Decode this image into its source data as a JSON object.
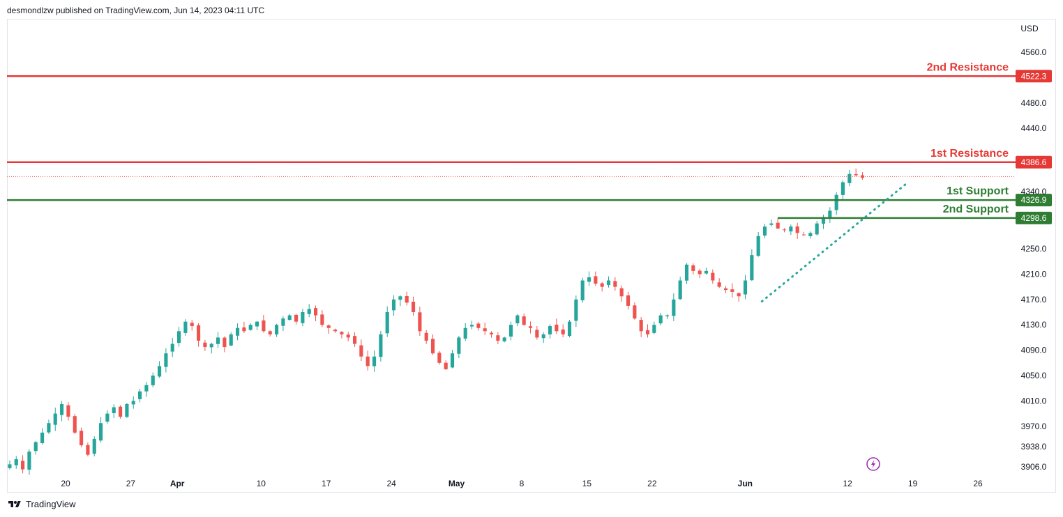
{
  "header": {
    "publisher_line": "desmondlzw published on TradingView.com, Jun 14, 2023 04:11 UTC"
  },
  "footer": {
    "brand": "TradingView"
  },
  "colors": {
    "up": "#26a69a",
    "down": "#ef5350",
    "resistance": "#e53935",
    "support": "#2e7d32",
    "trend": "#26a69a",
    "grid_border": "#e0e3eb"
  },
  "icons": {
    "flash": "lightning-icon",
    "logo": "tradingview-logo-icon"
  },
  "chart_data": {
    "type": "candlestick",
    "currency": "USD",
    "y_ticks": [
      "4560.0",
      "4480.0",
      "4440.0",
      "4340.0",
      "4250.0",
      "4210.0",
      "4170.0",
      "4130.0",
      "4090.0",
      "4050.0",
      "4010.0",
      "3970.0",
      "3938.0",
      "3906.0"
    ],
    "x_ticks": [
      {
        "label": "20",
        "day": 0
      },
      {
        "label": "27",
        "day": 7
      },
      {
        "label": "Apr",
        "day": 12,
        "bold": true
      },
      {
        "label": "10",
        "day": 21
      },
      {
        "label": "17",
        "day": 28
      },
      {
        "label": "24",
        "day": 35
      },
      {
        "label": "May",
        "day": 42,
        "bold": true
      },
      {
        "label": "8",
        "day": 49
      },
      {
        "label": "15",
        "day": 56
      },
      {
        "label": "22",
        "day": 63
      },
      {
        "label": "Jun",
        "day": 73,
        "bold": true
      },
      {
        "label": "12",
        "day": 84
      },
      {
        "label": "19",
        "day": 91
      },
      {
        "label": "26",
        "day": 98
      }
    ],
    "levels": [
      {
        "name": "2nd Resistance",
        "price": "4522.3",
        "kind": "resistance"
      },
      {
        "name": "1st Resistance",
        "price": "4386.6",
        "kind": "resistance"
      },
      {
        "name": "1st Support",
        "price": "4326.9",
        "kind": "support"
      },
      {
        "name": "2nd Support",
        "price": "4298.6",
        "kind": "support"
      }
    ],
    "last_price": 4364,
    "trendline": {
      "from": {
        "day": 74.8,
        "price": 4167
      },
      "to": {
        "day": 90.5,
        "price": 4355
      }
    },
    "closes": [
      3910,
      3918,
      3902,
      3930,
      3945,
      3960,
      3975,
      3990,
      4005,
      3985,
      3960,
      3940,
      3925,
      3950,
      3975,
      3990,
      4000,
      3985,
      4005,
      4010,
      4025,
      4035,
      4050,
      4065,
      4085,
      4100,
      4120,
      4135,
      4128,
      4105,
      4095,
      4100,
      4110,
      4095,
      4115,
      4125,
      4120,
      4130,
      4135,
      4120,
      4115,
      4130,
      4140,
      4145,
      4135,
      4150,
      4155,
      4145,
      4130,
      4125,
      4120,
      4115,
      4110,
      4100,
      4080,
      4065,
      4080,
      4115,
      4150,
      4170,
      4175,
      4165,
      4150,
      4120,
      4105,
      4085,
      4070,
      4060,
      4085,
      4110,
      4125,
      4130,
      4125,
      4120,
      4115,
      4105,
      4110,
      4130,
      4145,
      4130,
      4125,
      4110,
      4115,
      4128,
      4120,
      4115,
      4135,
      4170,
      4200,
      4205,
      4195,
      4190,
      4200,
      4190,
      4175,
      4160,
      4140,
      4120,
      4115,
      4130,
      4145,
      4145,
      4170,
      4200,
      4225,
      4215,
      4210,
      4215,
      4200,
      4190,
      4185,
      4182,
      4175,
      4200,
      4240,
      4270,
      4285,
      4290,
      4282,
      4280,
      4285,
      4275,
      4272,
      4275,
      4290,
      4300,
      4310,
      4335,
      4355,
      4368,
      4366,
      4362
    ]
  }
}
